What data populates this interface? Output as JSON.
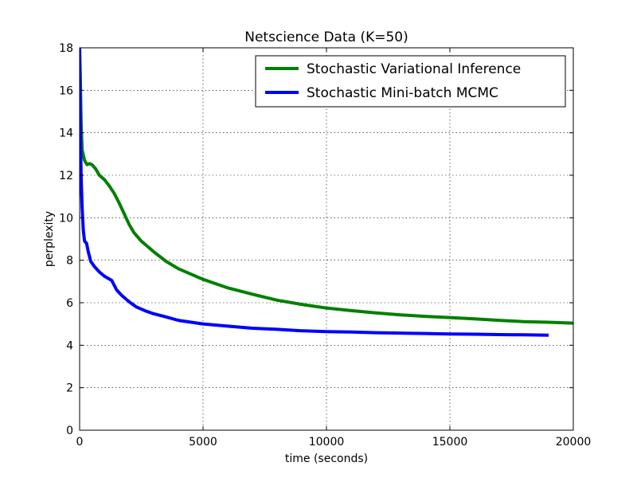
{
  "chart_data": {
    "type": "line",
    "title": "Netscience Data (K=50)",
    "xlabel": "time (seconds)",
    "ylabel": "perplexity",
    "xlim": [
      0,
      20000
    ],
    "ylim": [
      0,
      18
    ],
    "xticks": [
      0,
      5000,
      10000,
      15000,
      20000
    ],
    "yticks": [
      0,
      2,
      4,
      6,
      8,
      10,
      12,
      14,
      16,
      18
    ],
    "grid": true,
    "legend_position": "top-right",
    "series": [
      {
        "name": "Stochastic Variational Inference",
        "color": "#008000",
        "points": [
          [
            0,
            18
          ],
          [
            30,
            16.5
          ],
          [
            60,
            14.5
          ],
          [
            100,
            13.2
          ],
          [
            200,
            12.7
          ],
          [
            300,
            12.5
          ],
          [
            400,
            12.55
          ],
          [
            500,
            12.5
          ],
          [
            650,
            12.3
          ],
          [
            800,
            12.0
          ],
          [
            1000,
            11.8
          ],
          [
            1200,
            11.5
          ],
          [
            1400,
            11.15
          ],
          [
            1600,
            10.7
          ],
          [
            1800,
            10.2
          ],
          [
            2000,
            9.7
          ],
          [
            2200,
            9.3
          ],
          [
            2500,
            8.9
          ],
          [
            3000,
            8.4
          ],
          [
            3500,
            7.95
          ],
          [
            4000,
            7.6
          ],
          [
            5000,
            7.1
          ],
          [
            6000,
            6.7
          ],
          [
            7000,
            6.4
          ],
          [
            8000,
            6.12
          ],
          [
            9000,
            5.92
          ],
          [
            10000,
            5.75
          ],
          [
            11000,
            5.63
          ],
          [
            12000,
            5.52
          ],
          [
            13000,
            5.43
          ],
          [
            14000,
            5.36
          ],
          [
            15000,
            5.3
          ],
          [
            16000,
            5.24
          ],
          [
            17000,
            5.17
          ],
          [
            18000,
            5.11
          ],
          [
            19000,
            5.08
          ],
          [
            20000,
            5.04
          ]
        ]
      },
      {
        "name": "Stochastic Mini-batch MCMC",
        "color": "#0000ff",
        "points": [
          [
            0,
            18
          ],
          [
            30,
            14
          ],
          [
            60,
            12
          ],
          [
            100,
            10.5
          ],
          [
            150,
            9.4
          ],
          [
            200,
            8.9
          ],
          [
            280,
            8.8
          ],
          [
            350,
            8.4
          ],
          [
            450,
            7.95
          ],
          [
            600,
            7.7
          ],
          [
            800,
            7.45
          ],
          [
            1000,
            7.25
          ],
          [
            1300,
            7.05
          ],
          [
            1500,
            6.6
          ],
          [
            1700,
            6.35
          ],
          [
            2000,
            6.05
          ],
          [
            2300,
            5.8
          ],
          [
            2700,
            5.6
          ],
          [
            3000,
            5.48
          ],
          [
            3500,
            5.33
          ],
          [
            4000,
            5.17
          ],
          [
            5000,
            5.0
          ],
          [
            6000,
            4.9
          ],
          [
            7000,
            4.8
          ],
          [
            8000,
            4.75
          ],
          [
            9000,
            4.68
          ],
          [
            10000,
            4.64
          ],
          [
            11000,
            4.62
          ],
          [
            12000,
            4.59
          ],
          [
            13000,
            4.57
          ],
          [
            14000,
            4.55
          ],
          [
            15000,
            4.53
          ],
          [
            16000,
            4.52
          ],
          [
            17000,
            4.5
          ],
          [
            18000,
            4.49
          ],
          [
            19000,
            4.47
          ]
        ]
      }
    ]
  }
}
